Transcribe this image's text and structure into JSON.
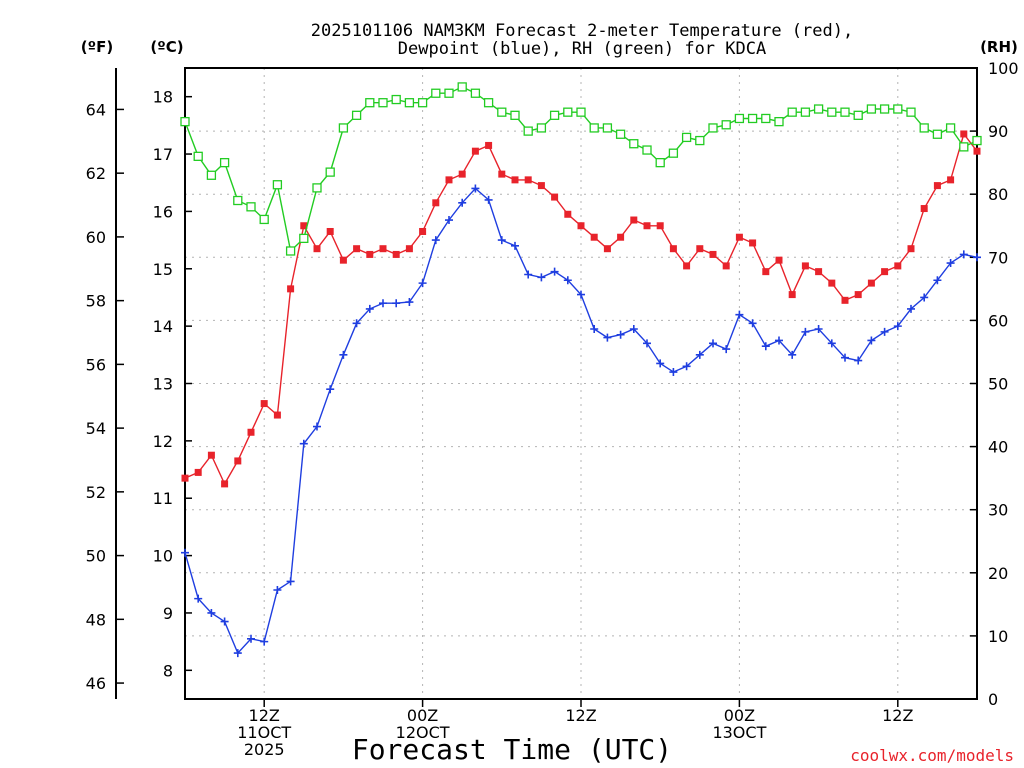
{
  "colors": {
    "temp": "#e8232b",
    "dewpoint": "#1f3ee0",
    "rh": "#22cc22",
    "credit": "#e8232b"
  },
  "chart_data": {
    "type": "line",
    "title": "2025101106 NAM3KM Forecast 2-meter Temperature (red),",
    "title_line2": "Dewpoint (blue), RH (green) for KDCA",
    "xlabel": "Forecast Time (UTC)",
    "credit": "coolwx.com/models",
    "unit_f": "(ºF)",
    "unit_c": "(ºC)",
    "unit_rh": "(RH)",
    "x_range_hours": [
      0,
      60
    ],
    "y_c_range": [
      7.5,
      18.5
    ],
    "y_rh_range": [
      0,
      100
    ],
    "yticks_c": [
      8,
      9,
      10,
      11,
      12,
      13,
      14,
      15,
      16,
      17,
      18
    ],
    "yticks_f": [
      46,
      48,
      50,
      52,
      54,
      56,
      58,
      60,
      62,
      64
    ],
    "yticks_rh": [
      0,
      10,
      20,
      30,
      40,
      50,
      60,
      70,
      80,
      90,
      100
    ],
    "xticks": [
      {
        "hour": 6,
        "line1": "12Z",
        "line2": "11OCT",
        "line3": "2025"
      },
      {
        "hour": 18,
        "line1": "00Z",
        "line2": "12OCT",
        "line3": ""
      },
      {
        "hour": 30,
        "line1": "12Z",
        "line2": "",
        "line3": ""
      },
      {
        "hour": 42,
        "line1": "00Z",
        "line2": "13OCT",
        "line3": ""
      },
      {
        "hour": 54,
        "line1": "12Z",
        "line2": "",
        "line3": ""
      }
    ],
    "hours": [
      0,
      1,
      2,
      3,
      4,
      5,
      6,
      7,
      8,
      9,
      10,
      11,
      12,
      13,
      14,
      15,
      16,
      17,
      18,
      19,
      20,
      21,
      22,
      23,
      24,
      25,
      26,
      27,
      28,
      29,
      30,
      31,
      32,
      33,
      34,
      35,
      36,
      37,
      38,
      39,
      40,
      41,
      42,
      43,
      44,
      45,
      46,
      47,
      48,
      49,
      50,
      51,
      52,
      53,
      54,
      55,
      56,
      57,
      58,
      59,
      60
    ],
    "series": [
      {
        "name": "Temperature (°C)",
        "key": "temp",
        "marker": "square-filled",
        "values": [
          11.35,
          11.45,
          11.75,
          11.25,
          11.65,
          12.15,
          12.65,
          12.45,
          14.65,
          15.75,
          15.35,
          15.65,
          15.15,
          15.35,
          15.25,
          15.35,
          15.25,
          15.35,
          15.65,
          16.15,
          16.55,
          16.65,
          17.05,
          17.15,
          16.65,
          16.55,
          16.55,
          16.45,
          16.25,
          15.95,
          15.75,
          15.55,
          15.35,
          15.55,
          15.85,
          15.75,
          15.75,
          15.35,
          15.05,
          15.35,
          15.25,
          15.05,
          15.55,
          15.45,
          14.95,
          15.15,
          14.55,
          15.05,
          14.95,
          14.75,
          14.45,
          14.55,
          14.75,
          14.95,
          15.05,
          15.35,
          16.05,
          16.45,
          16.55,
          17.35,
          17.05
        ]
      },
      {
        "name": "Dewpoint (°C)",
        "key": "dewpoint",
        "marker": "plus",
        "values": [
          10.05,
          9.25,
          9.0,
          8.85,
          8.3,
          8.55,
          8.5,
          9.4,
          9.55,
          11.95,
          12.25,
          12.9,
          13.5,
          14.05,
          14.3,
          14.4,
          14.4,
          14.42,
          14.75,
          15.5,
          15.85,
          16.15,
          16.4,
          16.2,
          15.5,
          15.4,
          14.9,
          14.85,
          14.95,
          14.8,
          14.55,
          13.95,
          13.8,
          13.85,
          13.95,
          13.7,
          13.35,
          13.2,
          13.3,
          13.5,
          13.7,
          13.6,
          14.2,
          14.05,
          13.65,
          13.75,
          13.5,
          13.9,
          13.95,
          13.7,
          13.45,
          13.4,
          13.75,
          13.9,
          14.0,
          14.3,
          14.5,
          14.8,
          15.1,
          15.25,
          15.2
        ]
      },
      {
        "name": "RH (%)",
        "key": "rh",
        "marker": "square-open",
        "values": [
          91.5,
          86.0,
          83.0,
          85.0,
          79.0,
          78.0,
          76.0,
          81.5,
          71.0,
          73.0,
          81.0,
          83.5,
          90.5,
          92.5,
          94.5,
          94.5,
          95.0,
          94.5,
          94.5,
          96.0,
          96.0,
          97.0,
          96.0,
          94.5,
          93.0,
          92.5,
          90.0,
          90.5,
          92.5,
          93.0,
          93.0,
          90.5,
          90.5,
          89.5,
          88.0,
          87.0,
          85.0,
          86.5,
          89.0,
          88.5,
          90.5,
          91.0,
          92.0,
          92.0,
          92.0,
          91.5,
          93.0,
          93.0,
          93.5,
          93.0,
          93.0,
          92.5,
          93.5,
          93.5,
          93.5,
          93.0,
          90.5,
          89.5,
          90.5,
          87.5,
          88.5
        ]
      }
    ]
  }
}
